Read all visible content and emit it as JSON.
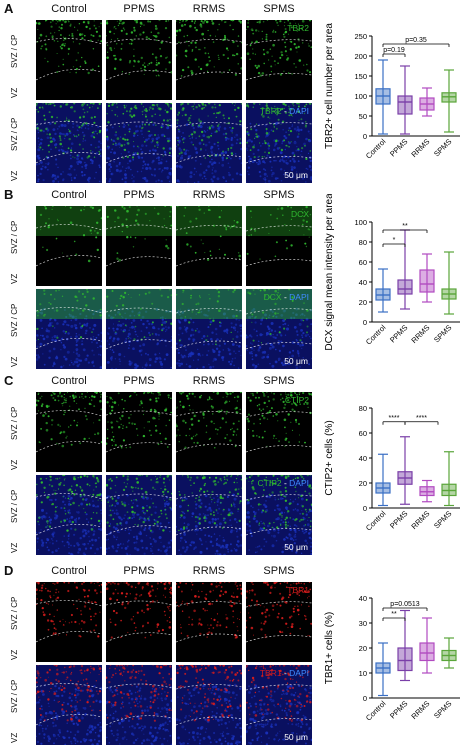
{
  "columns": [
    "Control",
    "PPMS",
    "RRMS",
    "SPMS"
  ],
  "row_labels": {
    "top": "SVZ / CP",
    "bottom": "VZ"
  },
  "colors": {
    "control": "#3a6fc4",
    "ppms": "#7a3fa8",
    "rrms": "#b14ac0",
    "spms": "#5aa53a",
    "green": "#2fb82f",
    "blue": "#1930b8",
    "red": "#d51c1c"
  },
  "panels": [
    {
      "letter": "A",
      "marker": "TBR2",
      "merge_marker": "TBR2",
      "merge_sep": " - ",
      "merge_counter": "DAPI",
      "scale": "50 μm",
      "channel": "green",
      "chart_data": {
        "type": "box",
        "categories": [
          "Control",
          "PPMS",
          "RRMS",
          "SPMS"
        ],
        "ylabel": "TBR2+ cell number per area",
        "ylim": [
          0,
          250
        ],
        "yticks": [
          0,
          50,
          100,
          150,
          200,
          250
        ],
        "boxes": [
          {
            "min": 5,
            "q1": 80,
            "median": 100,
            "q3": 118,
            "max": 190
          },
          {
            "min": 5,
            "q1": 55,
            "median": 85,
            "q3": 100,
            "max": 175
          },
          {
            "min": 50,
            "q1": 65,
            "median": 80,
            "q3": 95,
            "max": 120
          },
          {
            "min": 10,
            "q1": 85,
            "median": 98,
            "q3": 108,
            "max": 165
          }
        ],
        "annotations": [
          {
            "text": "p=0.19",
            "from": 0,
            "to": 1,
            "level": 205
          },
          {
            "text": "p=0.35",
            "from": 0,
            "to": 3,
            "level": 230
          }
        ]
      }
    },
    {
      "letter": "B",
      "marker": "DCX",
      "merge_marker": "DCX",
      "merge_sep": " - ",
      "merge_counter": "DAPI",
      "scale": "50 μm",
      "channel": "green",
      "chart_data": {
        "type": "box",
        "categories": [
          "Control",
          "PPMS",
          "RRMS",
          "SPMS"
        ],
        "ylabel": "DCX signal mean intensity per area",
        "ylim": [
          0,
          100
        ],
        "yticks": [
          0,
          20,
          40,
          60,
          80,
          100
        ],
        "boxes": [
          {
            "min": 10,
            "q1": 22,
            "median": 27,
            "q3": 33,
            "max": 53
          },
          {
            "min": 13,
            "q1": 28,
            "median": 33,
            "q3": 42,
            "max": 92
          },
          {
            "min": 20,
            "q1": 30,
            "median": 38,
            "q3": 52,
            "max": 68
          },
          {
            "min": 8,
            "q1": 23,
            "median": 28,
            "q3": 33,
            "max": 70
          }
        ],
        "annotations": [
          {
            "text": "*",
            "from": 0,
            "to": 1,
            "level": 78
          },
          {
            "text": "**",
            "from": 0,
            "to": 2,
            "level": 92
          }
        ]
      }
    },
    {
      "letter": "C",
      "marker": "CTIP2",
      "merge_marker": "CTIP2",
      "merge_sep": " - ",
      "merge_counter": "DAPI",
      "scale": "50 μm",
      "channel": "green",
      "chart_data": {
        "type": "box",
        "categories": [
          "Control",
          "PPMS",
          "RRMS",
          "SPMS"
        ],
        "ylabel": "CTIP2+ cells (%)",
        "ylim": [
          0,
          80
        ],
        "yticks": [
          0,
          20,
          40,
          60,
          80
        ],
        "boxes": [
          {
            "min": 2,
            "q1": 12,
            "median": 16,
            "q3": 20,
            "max": 43
          },
          {
            "min": 3,
            "q1": 19,
            "median": 24,
            "q3": 29,
            "max": 57
          },
          {
            "min": 5,
            "q1": 10,
            "median": 13,
            "q3": 17,
            "max": 22
          },
          {
            "min": 2,
            "q1": 10,
            "median": 14,
            "q3": 19,
            "max": 45
          }
        ],
        "annotations": [
          {
            "text": "****",
            "from": 0,
            "to": 1,
            "level": 69
          },
          {
            "text": "****",
            "from": 1,
            "to": 2.5,
            "level": 69
          }
        ]
      }
    },
    {
      "letter": "D",
      "marker": "TBR1",
      "merge_marker": "TBR1",
      "merge_sep": " - ",
      "merge_counter": "DAPI",
      "scale": "50 μm",
      "channel": "red",
      "chart_data": {
        "type": "box",
        "categories": [
          "Control",
          "PPMS",
          "RRMS",
          "SPMS"
        ],
        "ylabel": "TBR1+ cells (%)",
        "ylim": [
          0,
          40
        ],
        "yticks": [
          0,
          10,
          20,
          30,
          40
        ],
        "boxes": [
          {
            "min": 1,
            "q1": 10,
            "median": 12,
            "q3": 14,
            "max": 22
          },
          {
            "min": 7,
            "q1": 11,
            "median": 15,
            "q3": 20,
            "max": 35
          },
          {
            "min": 10,
            "q1": 15,
            "median": 18,
            "q3": 22,
            "max": 32
          },
          {
            "min": 12,
            "q1": 15,
            "median": 17,
            "q3": 19,
            "max": 24
          }
        ],
        "annotations": [
          {
            "text": "**",
            "from": 0,
            "to": 1,
            "level": 32
          },
          {
            "text": "p=0.0513",
            "from": 0,
            "to": 2,
            "level": 36
          }
        ]
      }
    }
  ]
}
